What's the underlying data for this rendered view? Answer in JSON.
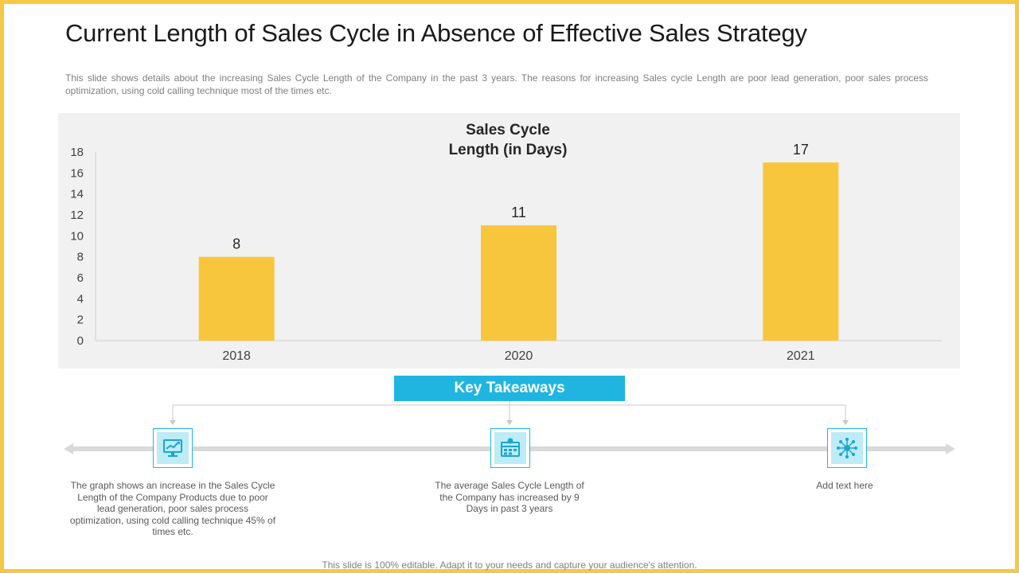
{
  "slide": {
    "title": "Current Length of Sales Cycle in Absence of Effective Sales Strategy",
    "subtitle": "This slide shows details about the increasing Sales Cycle Length of the Company in the past 3 years. The reasons for increasing Sales cycle Length are poor lead generation, poor sales process optimization, using cold calling technique most of the times etc.",
    "footer": "This slide is 100% editable. Adapt it to your needs and capture your audience's attention."
  },
  "chart_data": {
    "type": "bar",
    "title_lines": [
      "Sales Cycle",
      "Length (in Days)"
    ],
    "categories": [
      "2018",
      "2020",
      "2021"
    ],
    "values": [
      8,
      11,
      17
    ],
    "ylim": [
      0,
      18
    ],
    "yticks": [
      0,
      2,
      4,
      6,
      8,
      10,
      12,
      14,
      16,
      18
    ],
    "bar_color": "#f8c63d",
    "data_labels": true,
    "grid": false,
    "legend": "none"
  },
  "takeaways": {
    "header": "Key Takeaways",
    "items": [
      {
        "icon": "chart-monitor-icon",
        "text": "The graph shows an increase in the Sales Cycle Length of the Company Products due to poor lead generation, poor sales process optimization, using cold calling technique 45% of times etc."
      },
      {
        "icon": "calendar-clock-icon",
        "text": "The average Sales Cycle Length of the Company has increased by 9 Days in past 3 years"
      },
      {
        "icon": "network-hub-icon",
        "text": "Add text here"
      }
    ]
  },
  "colors": {
    "border": "#f6c945",
    "accent": "#1fb5e0",
    "bar": "#f8c63d",
    "panel": "#f1f1f1"
  }
}
